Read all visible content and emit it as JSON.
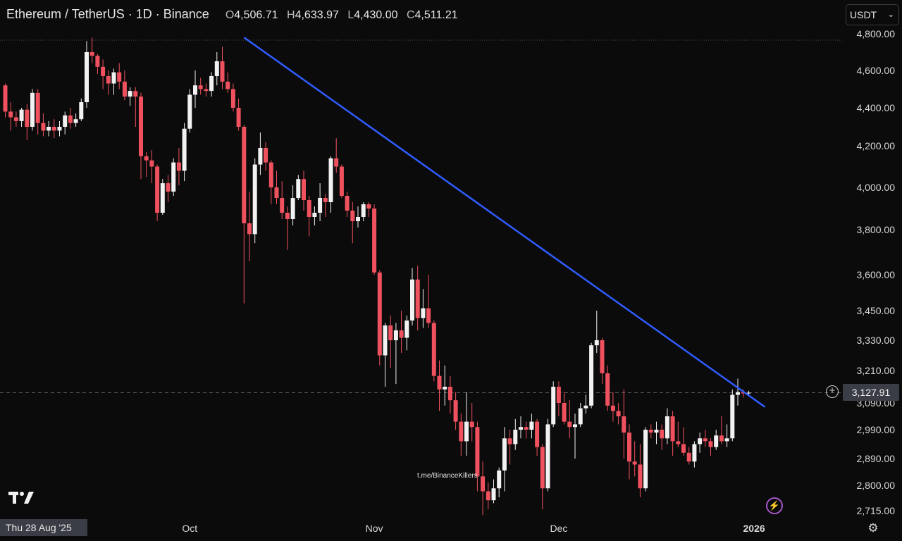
{
  "header": {
    "symbol": "Ethereum / TetherUS · 1D · Binance",
    "open_key": "O",
    "open": "4,506.71",
    "high_key": "H",
    "high": "4,633.97",
    "low_key": "L",
    "low": "4,430.00",
    "close_key": "C",
    "close": "4,511.21"
  },
  "currency_selector": {
    "label": "USDT",
    "chevron": "⌄"
  },
  "crosshair_date": "Thu 28 Aug '25",
  "current_price_label": "3,127.91",
  "plus_button": "+",
  "watermark": "t.me/BinanceKillers",
  "icons": [
    "tradingview-logo-icon",
    "flash-icon",
    "settings-icon",
    "plus-circle-icon"
  ],
  "colors": {
    "up": "#f2f2f2",
    "down": "#f0515f",
    "trendline": "#2f5cff",
    "background": "#0b0b0b",
    "grid_dash": "#5a5a5a"
  },
  "chart_data": {
    "type": "candlestick",
    "title": "",
    "ylim": [
      2680,
      4840
    ],
    "y_ticks": [
      "4,800.00",
      "4,600.00",
      "4,400.00",
      "4,200.00",
      "4,000.00",
      "3,800.00",
      "3,600.00",
      "3,450.00",
      "3,330.00",
      "3,210.00",
      "3,090.00",
      "2,990.00",
      "2,890.00",
      "2,800.00",
      "2,715.00"
    ],
    "y_tick_values": [
      4800,
      4600,
      4400,
      4200,
      4000,
      3800,
      3600,
      3450,
      3330,
      3210,
      3090,
      2990,
      2890,
      2800,
      2715
    ],
    "x_labels": [
      "Oct",
      "Nov",
      "Dec",
      "2026"
    ],
    "x_label_indices": [
      34,
      68,
      102,
      138
    ],
    "current_price": 3127.91,
    "top_reference_price": 4790,
    "trendline": {
      "from": [
        44,
        4780
      ],
      "to": [
        140,
        3075
      ]
    },
    "candles": [
      [
        4520,
        4530,
        4350,
        4380
      ],
      [
        4380,
        4430,
        4280,
        4350
      ],
      [
        4350,
        4380,
        4300,
        4330
      ],
      [
        4330,
        4400,
        4300,
        4390
      ],
      [
        4390,
        4420,
        4230,
        4300
      ],
      [
        4300,
        4500,
        4280,
        4480
      ],
      [
        4480,
        4500,
        4260,
        4320
      ],
      [
        4320,
        4370,
        4250,
        4280
      ],
      [
        4280,
        4330,
        4250,
        4300
      ],
      [
        4300,
        4340,
        4240,
        4280
      ],
      [
        4280,
        4330,
        4250,
        4300
      ],
      [
        4300,
        4380,
        4260,
        4360
      ],
      [
        4360,
        4400,
        4290,
        4320
      ],
      [
        4320,
        4370,
        4300,
        4340
      ],
      [
        4340,
        4450,
        4330,
        4430
      ],
      [
        4430,
        4760,
        4400,
        4700
      ],
      [
        4700,
        4780,
        4640,
        4680
      ],
      [
        4680,
        4690,
        4580,
        4620
      ],
      [
        4620,
        4660,
        4500,
        4570
      ],
      [
        4570,
        4600,
        4470,
        4530
      ],
      [
        4530,
        4610,
        4470,
        4590
      ],
      [
        4590,
        4640,
        4500,
        4540
      ],
      [
        4540,
        4600,
        4440,
        4460
      ],
      [
        4460,
        4510,
        4410,
        4490
      ],
      [
        4490,
        4510,
        4300,
        4460
      ],
      [
        4460,
        4480,
        4040,
        4150
      ],
      [
        4150,
        4170,
        4050,
        4130
      ],
      [
        4130,
        4180,
        4020,
        4100
      ],
      [
        4100,
        4110,
        3840,
        3880
      ],
      [
        3880,
        4040,
        3870,
        4020
      ],
      [
        4020,
        4060,
        3930,
        3980
      ],
      [
        3980,
        4140,
        3960,
        4120
      ],
      [
        4120,
        4190,
        4010,
        4080
      ],
      [
        4080,
        4320,
        4030,
        4290
      ],
      [
        4290,
        4500,
        4270,
        4470
      ],
      [
        4470,
        4600,
        4400,
        4520
      ],
      [
        4520,
        4560,
        4470,
        4500
      ],
      [
        4500,
        4530,
        4460,
        4490
      ],
      [
        4490,
        4590,
        4460,
        4570
      ],
      [
        4570,
        4700,
        4520,
        4650
      ],
      [
        4650,
        4730,
        4500,
        4540
      ],
      [
        4540,
        4590,
        4480,
        4500
      ],
      [
        4500,
        4530,
        4380,
        4400
      ],
      [
        4400,
        4450,
        4280,
        4300
      ],
      [
        4300,
        4310,
        3480,
        3830
      ],
      [
        3830,
        3980,
        3660,
        3780
      ],
      [
        3780,
        4140,
        3740,
        4110
      ],
      [
        4110,
        4270,
        4060,
        4190
      ],
      [
        4190,
        4220,
        4080,
        4120
      ],
      [
        4120,
        4130,
        3920,
        4000
      ],
      [
        4000,
        4080,
        3920,
        3950
      ],
      [
        3950,
        4030,
        3850,
        3880
      ],
      [
        3880,
        3910,
        3710,
        3850
      ],
      [
        3850,
        4010,
        3820,
        3950
      ],
      [
        3950,
        4060,
        3940,
        4040
      ],
      [
        4040,
        4080,
        3890,
        3940
      ],
      [
        3940,
        3960,
        3770,
        3860
      ],
      [
        3860,
        3910,
        3820,
        3880
      ],
      [
        3880,
        4020,
        3840,
        3950
      ],
      [
        3950,
        3970,
        3860,
        3930
      ],
      [
        3930,
        4150,
        3880,
        4140
      ],
      [
        4140,
        4240,
        4070,
        4100
      ],
      [
        4100,
        4110,
        3950,
        3960
      ],
      [
        3960,
        3980,
        3860,
        3890
      ],
      [
        3890,
        3930,
        3740,
        3840
      ],
      [
        3840,
        3910,
        3810,
        3860
      ],
      [
        3860,
        3930,
        3840,
        3920
      ],
      [
        3920,
        3930,
        3860,
        3900
      ],
      [
        3900,
        3920,
        3600,
        3610
      ],
      [
        3610,
        3620,
        3230,
        3270
      ],
      [
        3270,
        3400,
        3150,
        3390
      ],
      [
        3390,
        3430,
        3220,
        3330
      ],
      [
        3330,
        3400,
        3160,
        3370
      ],
      [
        3370,
        3450,
        3280,
        3340
      ],
      [
        3340,
        3430,
        3290,
        3410
      ],
      [
        3410,
        3630,
        3390,
        3580
      ],
      [
        3580,
        3640,
        3370,
        3420
      ],
      [
        3420,
        3540,
        3380,
        3460
      ],
      [
        3460,
        3600,
        3380,
        3400
      ],
      [
        3400,
        3410,
        3170,
        3190
      ],
      [
        3190,
        3250,
        3060,
        3140
      ],
      [
        3140,
        3230,
        3080,
        3150
      ],
      [
        3150,
        3190,
        3050,
        3100
      ],
      [
        3100,
        3130,
        2990,
        3020
      ],
      [
        3020,
        3050,
        2900,
        2950
      ],
      [
        2950,
        3130,
        2900,
        3020
      ],
      [
        3020,
        3090,
        2950,
        3000
      ],
      [
        3000,
        3020,
        2780,
        2830
      ],
      [
        2830,
        2880,
        2700,
        2780
      ],
      [
        2780,
        2810,
        2720,
        2750
      ],
      [
        2750,
        2820,
        2740,
        2790
      ],
      [
        2790,
        2860,
        2760,
        2850
      ],
      [
        2850,
        3000,
        2780,
        2960
      ],
      [
        2960,
        2990,
        2870,
        2940
      ],
      [
        2940,
        3030,
        2920,
        2990
      ],
      [
        2990,
        3040,
        2960,
        3000
      ],
      [
        3000,
        3020,
        2960,
        2990
      ],
      [
        2990,
        3050,
        2960,
        3020
      ],
      [
        3020,
        3030,
        2900,
        2930
      ],
      [
        2930,
        2940,
        2720,
        2790
      ],
      [
        2790,
        3030,
        2780,
        3010
      ],
      [
        3010,
        3170,
        3000,
        3150
      ],
      [
        3150,
        3170,
        3040,
        3090
      ],
      [
        3090,
        3130,
        3010,
        3020
      ],
      [
        3020,
        3100,
        2960,
        3000
      ],
      [
        3000,
        3050,
        2890,
        3010
      ],
      [
        3010,
        3090,
        3000,
        3070
      ],
      [
        3070,
        3120,
        3050,
        3080
      ],
      [
        3080,
        3320,
        3070,
        3310
      ],
      [
        3310,
        3450,
        3280,
        3330
      ],
      [
        3330,
        3340,
        3160,
        3200
      ],
      [
        3200,
        3230,
        3060,
        3080
      ],
      [
        3080,
        3130,
        3020,
        3060
      ],
      [
        3060,
        3090,
        3010,
        3040
      ],
      [
        3040,
        3140,
        2890,
        2980
      ],
      [
        2980,
        3010,
        2820,
        2880
      ],
      [
        2880,
        2950,
        2830,
        2870
      ],
      [
        2870,
        2940,
        2760,
        2790
      ],
      [
        2790,
        3000,
        2780,
        2990
      ],
      [
        2990,
        3010,
        2960,
        2980
      ],
      [
        2980,
        3020,
        2940,
        2990
      ],
      [
        2990,
        3010,
        2920,
        2960
      ],
      [
        2960,
        3070,
        2940,
        3040
      ],
      [
        3040,
        3060,
        2900,
        2950
      ],
      [
        2950,
        3020,
        2930,
        2940
      ],
      [
        2940,
        3000,
        2900,
        2910
      ],
      [
        2910,
        2930,
        2870,
        2880
      ],
      [
        2880,
        2950,
        2860,
        2940
      ],
      [
        2940,
        2980,
        2910,
        2960
      ],
      [
        2960,
        2990,
        2930,
        2950
      ],
      [
        2950,
        2960,
        2900,
        2930
      ],
      [
        2930,
        2990,
        2920,
        2970
      ],
      [
        2970,
        3040,
        2940,
        2950
      ],
      [
        2950,
        3010,
        2930,
        2960
      ],
      [
        2960,
        3140,
        2950,
        3120
      ],
      [
        3120,
        3180,
        3080,
        3130
      ],
      [
        3130,
        3140,
        3110,
        3125
      ],
      [
        3125,
        3135,
        3120,
        3127.91
      ]
    ]
  }
}
